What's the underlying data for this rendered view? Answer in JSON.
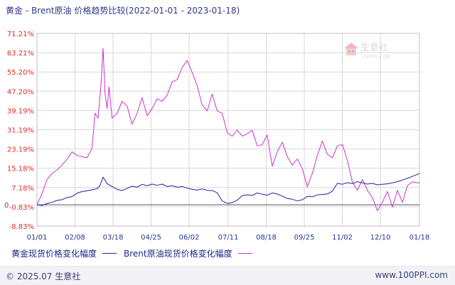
{
  "title": "黄金 - Brent原油 价格趋势比较(2022-01-01 - 2023-01-18)",
  "legend": {
    "gold": "黄金现货价格变化幅度",
    "brent": "Brent原油现货价格变化幅度"
  },
  "footer": {
    "copyright": "© 2025.07 生意社",
    "website": "www.100PPI.com"
  },
  "watermark": {
    "text": "生意社",
    "sub": "100PPI.COM"
  },
  "colors": {
    "gold": "#1f1fa8",
    "brent": "#cc33cc",
    "grid": "#d7d7dc",
    "axis": "#555"
  },
  "chart_data": {
    "type": "line",
    "title": "黄金 - Brent原油 价格趋势比较(2022-01-01 - 2023-01-18)",
    "xlabel": "",
    "ylabel": "",
    "ylim": [
      -8.83,
      71.21
    ],
    "y_ticks": [
      "71.21%",
      "63.21%",
      "55.20%",
      "47.20%",
      "39.19%",
      "31.19%",
      "23.19%",
      "15.18%",
      "7.18%",
      "-0.83%",
      "-8.83%"
    ],
    "y_tick_values": [
      71.21,
      63.21,
      55.2,
      47.2,
      39.19,
      31.19,
      23.19,
      15.18,
      7.18,
      -0.83,
      -8.83
    ],
    "x_ticks": [
      "01/01",
      "02/08",
      "03/18",
      "04/25",
      "06/02",
      "07/11",
      "08/18",
      "09/25",
      "11/02",
      "12/10",
      "01/18"
    ],
    "x_tick_values": [
      0,
      38,
      76,
      114,
      152,
      191,
      229,
      267,
      305,
      343,
      382
    ],
    "baseline": 0,
    "grid": true,
    "legend_position": "bottom",
    "series": [
      {
        "name": "黄金现货价格变化幅度",
        "color": "#1f1fa8",
        "x": [
          0,
          5,
          10,
          15,
          20,
          25,
          30,
          35,
          40,
          45,
          50,
          55,
          60,
          63,
          66,
          70,
          75,
          80,
          85,
          90,
          95,
          100,
          105,
          110,
          115,
          120,
          125,
          130,
          135,
          140,
          145,
          150,
          155,
          160,
          165,
          170,
          175,
          180,
          185,
          190,
          195,
          200,
          205,
          210,
          215,
          220,
          225,
          230,
          235,
          240,
          245,
          250,
          255,
          260,
          265,
          270,
          275,
          280,
          285,
          290,
          295,
          300,
          305,
          310,
          315,
          320,
          325,
          330,
          335,
          340,
          345,
          350,
          355,
          360,
          365,
          370,
          375,
          382
        ],
        "values": [
          0.0,
          -0.3,
          0.5,
          1.0,
          1.8,
          2.1,
          3.0,
          3.4,
          4.8,
          5.5,
          5.8,
          6.2,
          6.7,
          8.0,
          11.5,
          8.8,
          7.6,
          6.4,
          5.9,
          6.8,
          7.7,
          7.3,
          8.5,
          7.9,
          8.6,
          8.1,
          8.6,
          7.6,
          7.9,
          7.3,
          7.6,
          6.9,
          6.4,
          6.1,
          6.6,
          6.0,
          5.9,
          5.0,
          1.6,
          0.6,
          0.9,
          1.9,
          3.8,
          4.1,
          3.9,
          4.9,
          4.4,
          4.0,
          4.9,
          4.5,
          3.6,
          2.6,
          2.3,
          1.6,
          2.1,
          3.5,
          3.3,
          4.1,
          4.3,
          4.5,
          5.6,
          8.9,
          8.5,
          9.2,
          8.8,
          9.6,
          9.1,
          8.6,
          8.9,
          8.3,
          8.5,
          8.7,
          9.1,
          9.6,
          10.3,
          11.0,
          11.8,
          13.0
        ]
      },
      {
        "name": "Brent原油现货价格变化幅度",
        "color": "#cc33cc",
        "x": [
          0,
          5,
          10,
          15,
          20,
          25,
          30,
          35,
          40,
          45,
          50,
          55,
          58,
          61,
          64,
          66,
          68,
          70,
          72,
          75,
          80,
          85,
          90,
          95,
          100,
          105,
          110,
          115,
          120,
          125,
          130,
          135,
          140,
          145,
          150,
          155,
          160,
          165,
          170,
          175,
          180,
          185,
          190,
          195,
          200,
          205,
          210,
          215,
          220,
          225,
          230,
          235,
          240,
          245,
          250,
          255,
          260,
          265,
          270,
          275,
          280,
          285,
          290,
          295,
          300,
          305,
          310,
          315,
          320,
          325,
          330,
          335,
          340,
          345,
          350,
          355,
          360,
          365,
          370,
          375,
          382
        ],
        "values": [
          0.0,
          4.5,
          10.5,
          13.0,
          14.5,
          16.5,
          19.0,
          22.0,
          20.5,
          20.0,
          19.5,
          23.5,
          38.0,
          36.0,
          50.0,
          65.0,
          46.0,
          40.0,
          49.0,
          36.0,
          38.0,
          43.0,
          41.0,
          33.5,
          38.0,
          44.5,
          37.0,
          40.0,
          44.0,
          43.0,
          45.5,
          51.0,
          52.0,
          57.0,
          60.0,
          55.0,
          49.5,
          41.5,
          39.0,
          46.0,
          39.0,
          38.0,
          30.0,
          28.5,
          31.0,
          28.5,
          29.5,
          31.0,
          24.5,
          25.0,
          29.0,
          16.0,
          22.0,
          26.0,
          20.0,
          16.5,
          19.0,
          15.0,
          7.5,
          13.0,
          20.5,
          26.5,
          21.0,
          19.5,
          24.5,
          25.0,
          18.5,
          9.5,
          6.0,
          10.5,
          6.0,
          3.0,
          -2.5,
          1.0,
          5.5,
          -1.0,
          6.0,
          1.0,
          8.0,
          9.5,
          9.0
        ]
      }
    ]
  }
}
